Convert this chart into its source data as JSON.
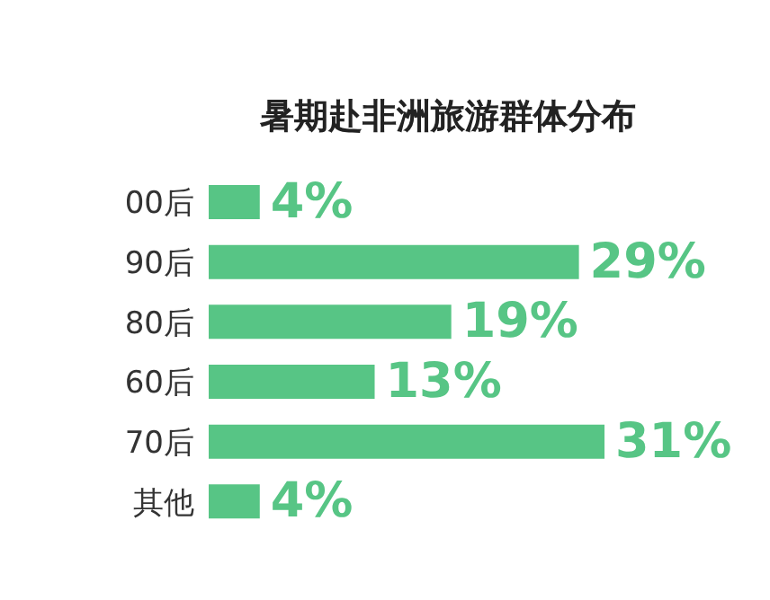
{
  "chart_data": {
    "type": "bar",
    "orientation": "horizontal",
    "title": "暑期赴非洲旅游群体分布",
    "categories": [
      "00后",
      "90后",
      "80后",
      "60后",
      "70后",
      "其他"
    ],
    "values": [
      4,
      29,
      19,
      13,
      31,
      4
    ],
    "value_labels": [
      "4%",
      "29%",
      "19%",
      "13%",
      "31%",
      "4%"
    ],
    "color": "#57c585",
    "grid": false,
    "legend": false
  }
}
